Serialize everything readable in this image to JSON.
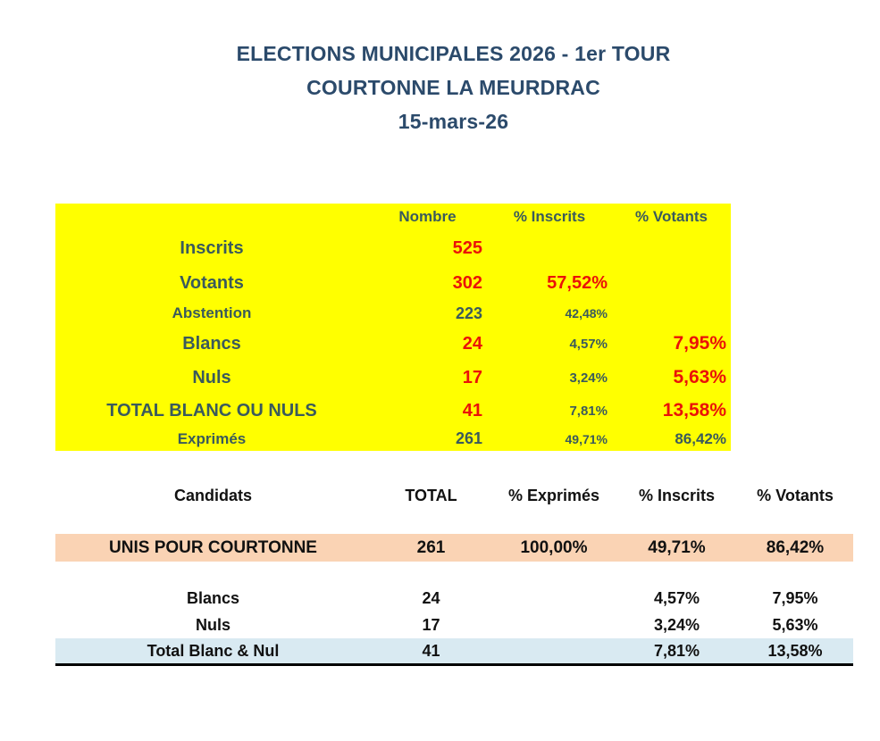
{
  "title": {
    "line1": "ELECTIONS MUNICIPALES 2026 - 1er TOUR",
    "line2": "COURTONNE LA MEURDRAC",
    "line3": "15-mars-26"
  },
  "colors": {
    "title_navy": "#2B4A6B",
    "summary_background": "#FFFF00",
    "summary_teal_text": "#3A5A5C",
    "summary_red_text": "#EA1208",
    "candidate_row_background": "#FAD3B4",
    "total_row_background": "#D9EAF2",
    "candidates_text": "#111111"
  },
  "summary_table": {
    "headers": {
      "nombre": "Nombre",
      "pct_inscrits": "% Inscrits",
      "pct_votants": "% Votants"
    },
    "rows": [
      {
        "label": "Inscrits",
        "nombre": "525",
        "pct_inscrits": "",
        "pct_votants": ""
      },
      {
        "label": "Votants",
        "nombre": "302",
        "pct_inscrits": "57,52%",
        "pct_votants": ""
      },
      {
        "label": "Abstention",
        "nombre": "223",
        "pct_inscrits": "42,48%",
        "pct_votants": ""
      },
      {
        "label": "Blancs",
        "nombre": "24",
        "pct_inscrits": "4,57%",
        "pct_votants": "7,95%"
      },
      {
        "label": "Nuls",
        "nombre": "17",
        "pct_inscrits": "3,24%",
        "pct_votants": "5,63%"
      },
      {
        "label": "TOTAL BLANC OU NULS",
        "nombre": "41",
        "pct_inscrits": "7,81%",
        "pct_votants": "13,58%"
      },
      {
        "label": "Exprimés",
        "nombre": "261",
        "pct_inscrits": "49,71%",
        "pct_votants": "86,42%"
      }
    ]
  },
  "candidates_table": {
    "headers": [
      "Candidats",
      "TOTAL",
      "% Exprimés",
      "% Inscrits",
      "% Votants"
    ],
    "rows": [
      {
        "label": "UNIS POUR COURTONNE",
        "total": "261",
        "pct_exprimes": "100,00%",
        "pct_inscrits": "49,71%",
        "pct_votants": "86,42%"
      },
      {
        "label": "Blancs",
        "total": "24",
        "pct_exprimes": "",
        "pct_inscrits": "4,57%",
        "pct_votants": "7,95%"
      },
      {
        "label": "Nuls",
        "total": "17",
        "pct_exprimes": "",
        "pct_inscrits": "3,24%",
        "pct_votants": "5,63%"
      },
      {
        "label": "Total Blanc & Nul",
        "total": "41",
        "pct_exprimes": "",
        "pct_inscrits": "7,81%",
        "pct_votants": "13,58%"
      }
    ]
  }
}
